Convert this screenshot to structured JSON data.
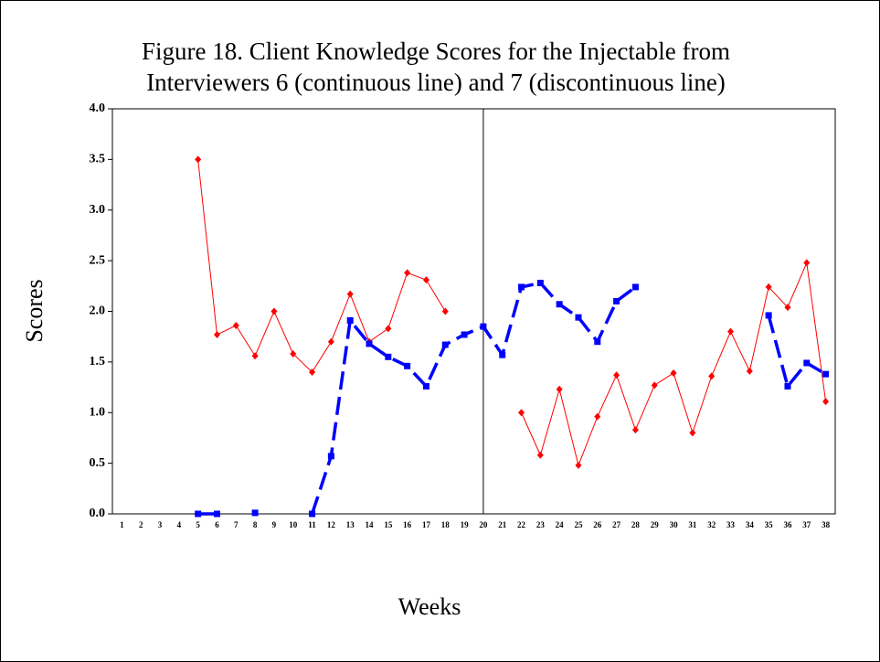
{
  "chart_data": {
    "type": "line",
    "title": [
      "Figure 18. Client Knowledge Scores for the Injectable from",
      "Interviewers 6 (continuous line) and 7 (discontinuous line)"
    ],
    "y_label": "Scores",
    "x_label": "Weeks",
    "categories": [
      1,
      2,
      3,
      4,
      5,
      6,
      7,
      8,
      9,
      10,
      11,
      12,
      13,
      14,
      15,
      16,
      17,
      18,
      19,
      20,
      21,
      22,
      23,
      24,
      25,
      26,
      27,
      28,
      29,
      30,
      31,
      32,
      33,
      34,
      35,
      36,
      37,
      38
    ],
    "series": [
      {
        "color": "#ff0000",
        "dashed": false,
        "marker": "diamond",
        "values": [
          null,
          null,
          null,
          null,
          3.5,
          1.77,
          1.86,
          1.56,
          2.0,
          1.58,
          1.4,
          1.7,
          2.17,
          1.7,
          1.83,
          2.38,
          2.31,
          2.0,
          null,
          null,
          null,
          1.0,
          0.58,
          1.23,
          0.48,
          0.96,
          1.37,
          0.83,
          1.27,
          1.39,
          0.8,
          1.36,
          1.8,
          1.41,
          2.24,
          2.04,
          2.48,
          1.11
        ]
      },
      {
        "color": "#0000ff",
        "dashed": true,
        "marker": "square",
        "values": [
          null,
          null,
          null,
          null,
          0.0,
          0.0,
          null,
          0.01,
          null,
          null,
          0.0,
          0.57,
          1.91,
          1.68,
          1.55,
          1.46,
          1.26,
          1.67,
          1.77,
          1.85,
          1.57,
          2.24,
          2.28,
          2.07,
          1.94,
          1.7,
          2.1,
          2.24,
          null,
          null,
          null,
          null,
          null,
          null,
          1.96,
          1.26,
          1.49,
          1.38
        ]
      }
    ],
    "ylim": [
      0,
      4
    ],
    "yticks": [
      {
        "value": 0,
        "label": "0.0"
      },
      {
        "value": 0.5,
        "label": "0.5"
      },
      {
        "value": 1,
        "label": "1.0"
      },
      {
        "value": 1.5,
        "label": "1.5"
      },
      {
        "value": 2,
        "label": "2.0"
      },
      {
        "value": 2.5,
        "label": "2.5"
      },
      {
        "value": 3,
        "label": "3.0"
      },
      {
        "value": 3.5,
        "label": "3.5"
      },
      {
        "value": 4,
        "label": "4.0"
      }
    ],
    "vline": 20,
    "grid": false
  }
}
